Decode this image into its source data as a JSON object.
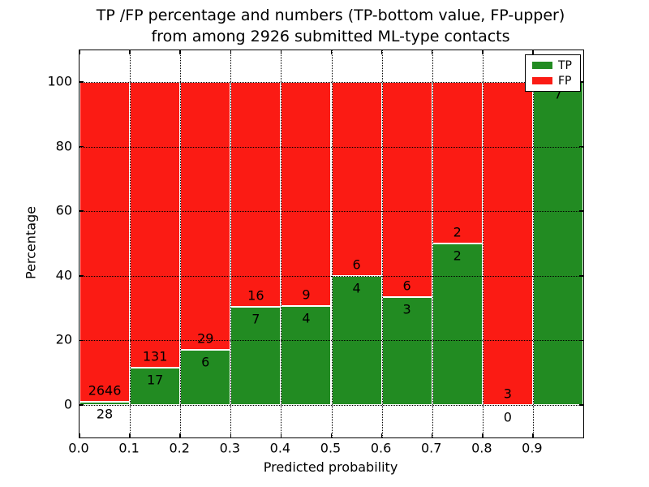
{
  "title": {
    "line1": "TP /FP percentage and numbers (TP-bottom value, FP-upper)",
    "line2": "from among 2926 submitted ML-type contacts"
  },
  "axes": {
    "xlabel": "Predicted probability",
    "ylabel": "Percentage",
    "xtick_labels": [
      "0.0",
      "0.1",
      "0.2",
      "0.3",
      "0.4",
      "0.5",
      "0.6",
      "0.7",
      "0.8",
      "0.9"
    ],
    "ytick_labels": [
      "0",
      "20",
      "40",
      "60",
      "80",
      "100"
    ],
    "ytick_values": [
      0,
      20,
      40,
      60,
      80,
      100
    ],
    "ylim": [
      -10,
      110
    ],
    "xlim": [
      0.0,
      1.0
    ],
    "grid": "dotted"
  },
  "legend": {
    "position": "upper-right",
    "entries": [
      {
        "label": "TP",
        "color": "#228b22"
      },
      {
        "label": "FP",
        "color": "#fb1b14"
      }
    ]
  },
  "colors": {
    "tp_green": "#228b22",
    "fp_red": "#fb1b14",
    "grid": "#000000",
    "background": "#ffffff",
    "text": "#000000"
  },
  "chart_data": {
    "type": "bar",
    "stacked": true,
    "units": "percent of bin total",
    "total_contacts": 2926,
    "categories": [
      "0.0-0.1",
      "0.1-0.2",
      "0.2-0.3",
      "0.3-0.4",
      "0.4-0.5",
      "0.5-0.6",
      "0.6-0.7",
      "0.7-0.8",
      "0.8-0.9",
      "0.9-1.0"
    ],
    "series": [
      {
        "name": "TP",
        "color": "#228b22",
        "counts": [
          28,
          17,
          6,
          7,
          4,
          4,
          3,
          2,
          0,
          7
        ]
      },
      {
        "name": "FP",
        "color": "#fb1b14",
        "counts": [
          2646,
          131,
          29,
          16,
          9,
          6,
          6,
          2,
          3,
          0
        ]
      }
    ],
    "tp_percent": [
      1.0,
      11.5,
      17.1,
      30.4,
      30.8,
      40.0,
      33.3,
      50.0,
      0.0,
      100.0
    ],
    "title": "TP /FP percentage and numbers (TP-bottom value, FP-upper) from among 2926 submitted ML-type contacts",
    "xlabel": "Predicted probability",
    "ylabel": "Percentage",
    "note": "FP count printed above the TP/FP boundary, TP count below it; FP label of last bin (0) hidden behind legend"
  }
}
